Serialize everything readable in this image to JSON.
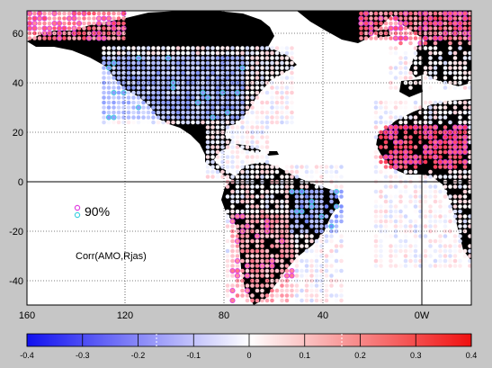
{
  "map": {
    "lon_ticks": [
      "160",
      "120",
      "80",
      "40",
      "0W"
    ],
    "lat_ticks": [
      "60",
      "40",
      "20",
      "0",
      "-20",
      "-40"
    ],
    "legend": {
      "label": "90%",
      "marker_colors": [
        "#e040e0",
        "#40d0e0"
      ]
    },
    "annotation": "Corr(AMO,Rjas)"
  },
  "colorbar": {
    "ticks": [
      "-0.4",
      "-0.3",
      "-0.2",
      "-0.1",
      "0",
      "0.1",
      "0.2",
      "0.3",
      "0.4"
    ],
    "colors": {
      "min": "#1010f0",
      "mid": "#ffffff",
      "max": "#f01010"
    }
  },
  "colors": {
    "background": "#c6c6c6",
    "ocean": "#ffffff",
    "land": "#000000"
  }
}
